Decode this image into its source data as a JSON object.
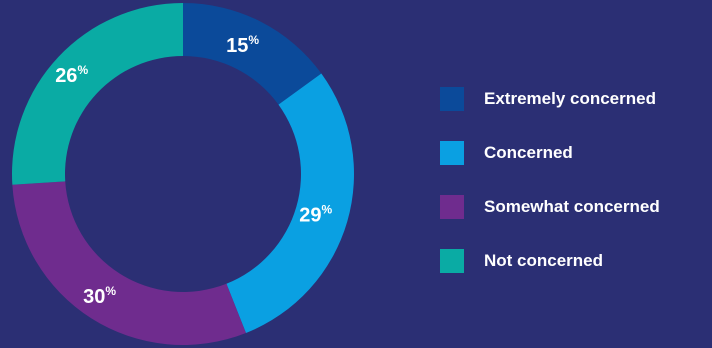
{
  "chart_data": {
    "type": "pie",
    "categories": [
      "Extremely concerned",
      "Concerned",
      "Somewhat concerned",
      "Not concerned"
    ],
    "values": [
      15,
      29,
      30,
      26
    ],
    "labels": [
      "15%",
      "29%",
      "30%",
      "26%"
    ],
    "colors": [
      "#0b4a9a",
      "#0aa0e2",
      "#6f2c8e",
      "#0aaba4"
    ],
    "donut": true,
    "legend_position": "right",
    "start": "top",
    "direction": "clockwise"
  },
  "background_color": "#2b2f74"
}
